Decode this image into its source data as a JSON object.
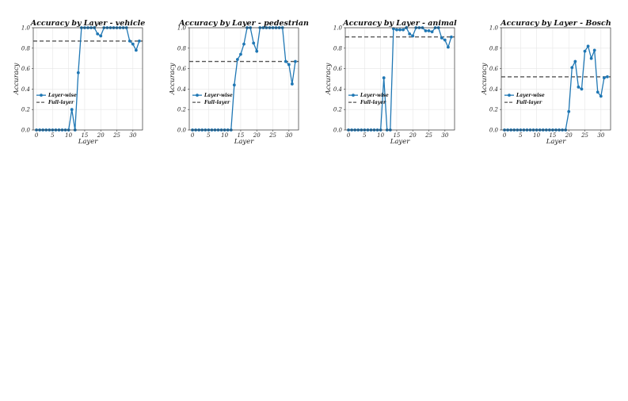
{
  "chart_data": [
    {
      "type": "line",
      "title": "Accuracy by Layer - vehicle",
      "xlabel": "Layer",
      "ylabel": "Accuracy",
      "xlim": [
        -1,
        33
      ],
      "ylim": [
        0,
        1.0
      ],
      "xticks": [
        "0",
        "5",
        "10",
        "15",
        "20",
        "25",
        "30"
      ],
      "yticks": [
        "0.0",
        "0.2",
        "0.4",
        "0.6",
        "0.8",
        "1.0"
      ],
      "grid": true,
      "legend_position": "center-left",
      "series": [
        {
          "name": "Layer-wise",
          "color": "#1f77b4",
          "x": [
            0,
            1,
            2,
            3,
            4,
            5,
            6,
            7,
            8,
            9,
            10,
            11,
            12,
            13,
            14,
            15,
            16,
            17,
            18,
            19,
            20,
            21,
            22,
            23,
            24,
            25,
            26,
            27,
            28,
            29,
            30,
            31,
            32
          ],
          "values": [
            0,
            0,
            0,
            0,
            0,
            0,
            0,
            0,
            0,
            0,
            0,
            0.2,
            0,
            0.56,
            1.0,
            1.0,
            1.0,
            1.0,
            1.0,
            0.94,
            0.92,
            1.0,
            1.0,
            1.0,
            1.0,
            1.0,
            1.0,
            1.0,
            1.0,
            0.87,
            0.84,
            0.78,
            0.87
          ]
        },
        {
          "name": "Full-layer",
          "color": "#555555",
          "style": "dashed",
          "value": 0.87
        }
      ]
    },
    {
      "type": "line",
      "title": "Accuracy by Layer - pedestrian",
      "xlabel": "Layer",
      "ylabel": "Accuracy",
      "xlim": [
        -1,
        33
      ],
      "ylim": [
        0,
        1.0
      ],
      "xticks": [
        "0",
        "5",
        "10",
        "15",
        "20",
        "25",
        "30"
      ],
      "yticks": [
        "0.0",
        "0.2",
        "0.4",
        "0.6",
        "0.8",
        "1.0"
      ],
      "grid": true,
      "legend_position": "center-left",
      "series": [
        {
          "name": "Layer-wise",
          "color": "#1f77b4",
          "x": [
            0,
            1,
            2,
            3,
            4,
            5,
            6,
            7,
            8,
            9,
            10,
            11,
            12,
            13,
            14,
            15,
            16,
            17,
            18,
            19,
            20,
            21,
            22,
            23,
            24,
            25,
            26,
            27,
            28,
            29,
            30,
            31,
            32
          ],
          "values": [
            0,
            0,
            0,
            0,
            0,
            0,
            0,
            0,
            0,
            0,
            0,
            0,
            0,
            0.44,
            0.69,
            0.74,
            0.84,
            1.0,
            1.0,
            0.85,
            0.77,
            1.0,
            1.0,
            1.0,
            1.0,
            1.0,
            1.0,
            1.0,
            1.0,
            0.67,
            0.64,
            0.45,
            0.67
          ]
        },
        {
          "name": "Full-layer",
          "color": "#555555",
          "style": "dashed",
          "value": 0.67
        }
      ]
    },
    {
      "type": "line",
      "title": "Accuracy by Layer - animal",
      "xlabel": "Layer",
      "ylabel": "Accuracy",
      "xlim": [
        -1,
        33
      ],
      "ylim": [
        0,
        1.0
      ],
      "xticks": [
        "0",
        "5",
        "10",
        "15",
        "20",
        "25",
        "30"
      ],
      "yticks": [
        "0.0",
        "0.2",
        "0.4",
        "0.6",
        "0.8",
        "1.0"
      ],
      "grid": true,
      "legend_position": "center-left",
      "series": [
        {
          "name": "Layer-wise",
          "color": "#1f77b4",
          "x": [
            0,
            1,
            2,
            3,
            4,
            5,
            6,
            7,
            8,
            9,
            10,
            11,
            12,
            13,
            14,
            15,
            16,
            17,
            18,
            19,
            20,
            21,
            22,
            23,
            24,
            25,
            26,
            27,
            28,
            29,
            30,
            31,
            32
          ],
          "values": [
            0,
            0,
            0,
            0,
            0,
            0,
            0,
            0,
            0,
            0,
            0,
            0.51,
            0,
            0,
            0.99,
            0.98,
            0.98,
            0.98,
            1.0,
            0.94,
            0.92,
            1.0,
            1.0,
            1.0,
            0.97,
            0.97,
            0.96,
            1.0,
            1.0,
            0.9,
            0.88,
            0.81,
            0.91
          ]
        },
        {
          "name": "Full-layer",
          "color": "#555555",
          "style": "dashed",
          "value": 0.91
        }
      ]
    },
    {
      "type": "line",
      "title": "Accuracy by Layer - Bosch",
      "xlabel": "Layer",
      "ylabel": "Accuracy",
      "xlim": [
        -1,
        33
      ],
      "ylim": [
        0,
        1.0
      ],
      "xticks": [
        "0",
        "5",
        "10",
        "15",
        "20",
        "25",
        "30"
      ],
      "yticks": [
        "0.0",
        "0.2",
        "0.4",
        "0.6",
        "0.8",
        "1.0"
      ],
      "grid": true,
      "legend_position": "center-left",
      "series": [
        {
          "name": "Layer-wise",
          "color": "#1f77b4",
          "x": [
            0,
            1,
            2,
            3,
            4,
            5,
            6,
            7,
            8,
            9,
            10,
            11,
            12,
            13,
            14,
            15,
            16,
            17,
            18,
            19,
            20,
            21,
            22,
            23,
            24,
            25,
            26,
            27,
            28,
            29,
            30,
            31,
            32
          ],
          "values": [
            0,
            0,
            0,
            0,
            0,
            0,
            0,
            0,
            0,
            0,
            0,
            0,
            0,
            0,
            0,
            0,
            0,
            0,
            0,
            0,
            0.18,
            0.61,
            0.67,
            0.42,
            0.4,
            0.77,
            0.82,
            0.7,
            0.78,
            0.37,
            0.33,
            0.51,
            0.52
          ]
        },
        {
          "name": "Full-layer",
          "color": "#555555",
          "style": "dashed",
          "value": 0.52
        }
      ]
    }
  ]
}
